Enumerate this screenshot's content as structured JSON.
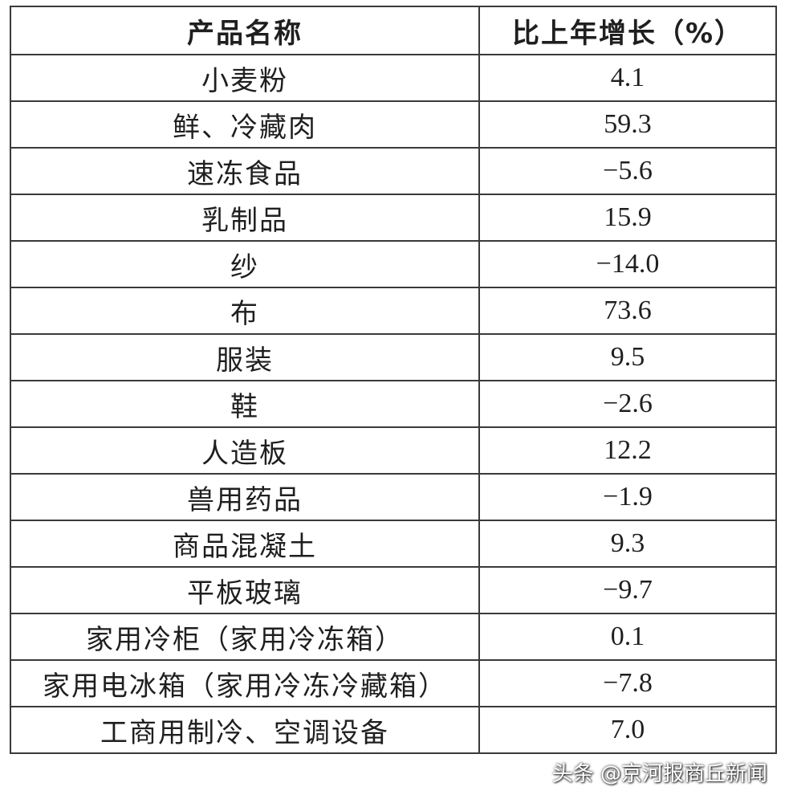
{
  "table": {
    "headers": [
      "产品名称",
      "比上年增长（%）"
    ],
    "rows": [
      {
        "name": "小麦粉",
        "value": "4.1"
      },
      {
        "name": "鲜、冷藏肉",
        "value": "59.3"
      },
      {
        "name": "速冻食品",
        "value": "−5.6"
      },
      {
        "name": "乳制品",
        "value": "15.9"
      },
      {
        "name": "纱",
        "value": "−14.0"
      },
      {
        "name": "布",
        "value": "73.6"
      },
      {
        "name": "服装",
        "value": "9.5"
      },
      {
        "name": "鞋",
        "value": "−2.6"
      },
      {
        "name": "人造板",
        "value": "12.2"
      },
      {
        "name": "兽用药品",
        "value": "−1.9"
      },
      {
        "name": "商品混凝土",
        "value": "9.3"
      },
      {
        "name": "平板玻璃",
        "value": "−9.7"
      },
      {
        "name": "家用冷柜（家用冷冻箱）",
        "value": "0.1"
      },
      {
        "name": "家用电冰箱（家用冷冻冷藏箱）",
        "value": "−7.8"
      },
      {
        "name": "工商用制冷、空调设备",
        "value": "7.0"
      }
    ]
  },
  "watermark": "头条 @京河报商丘新闻"
}
